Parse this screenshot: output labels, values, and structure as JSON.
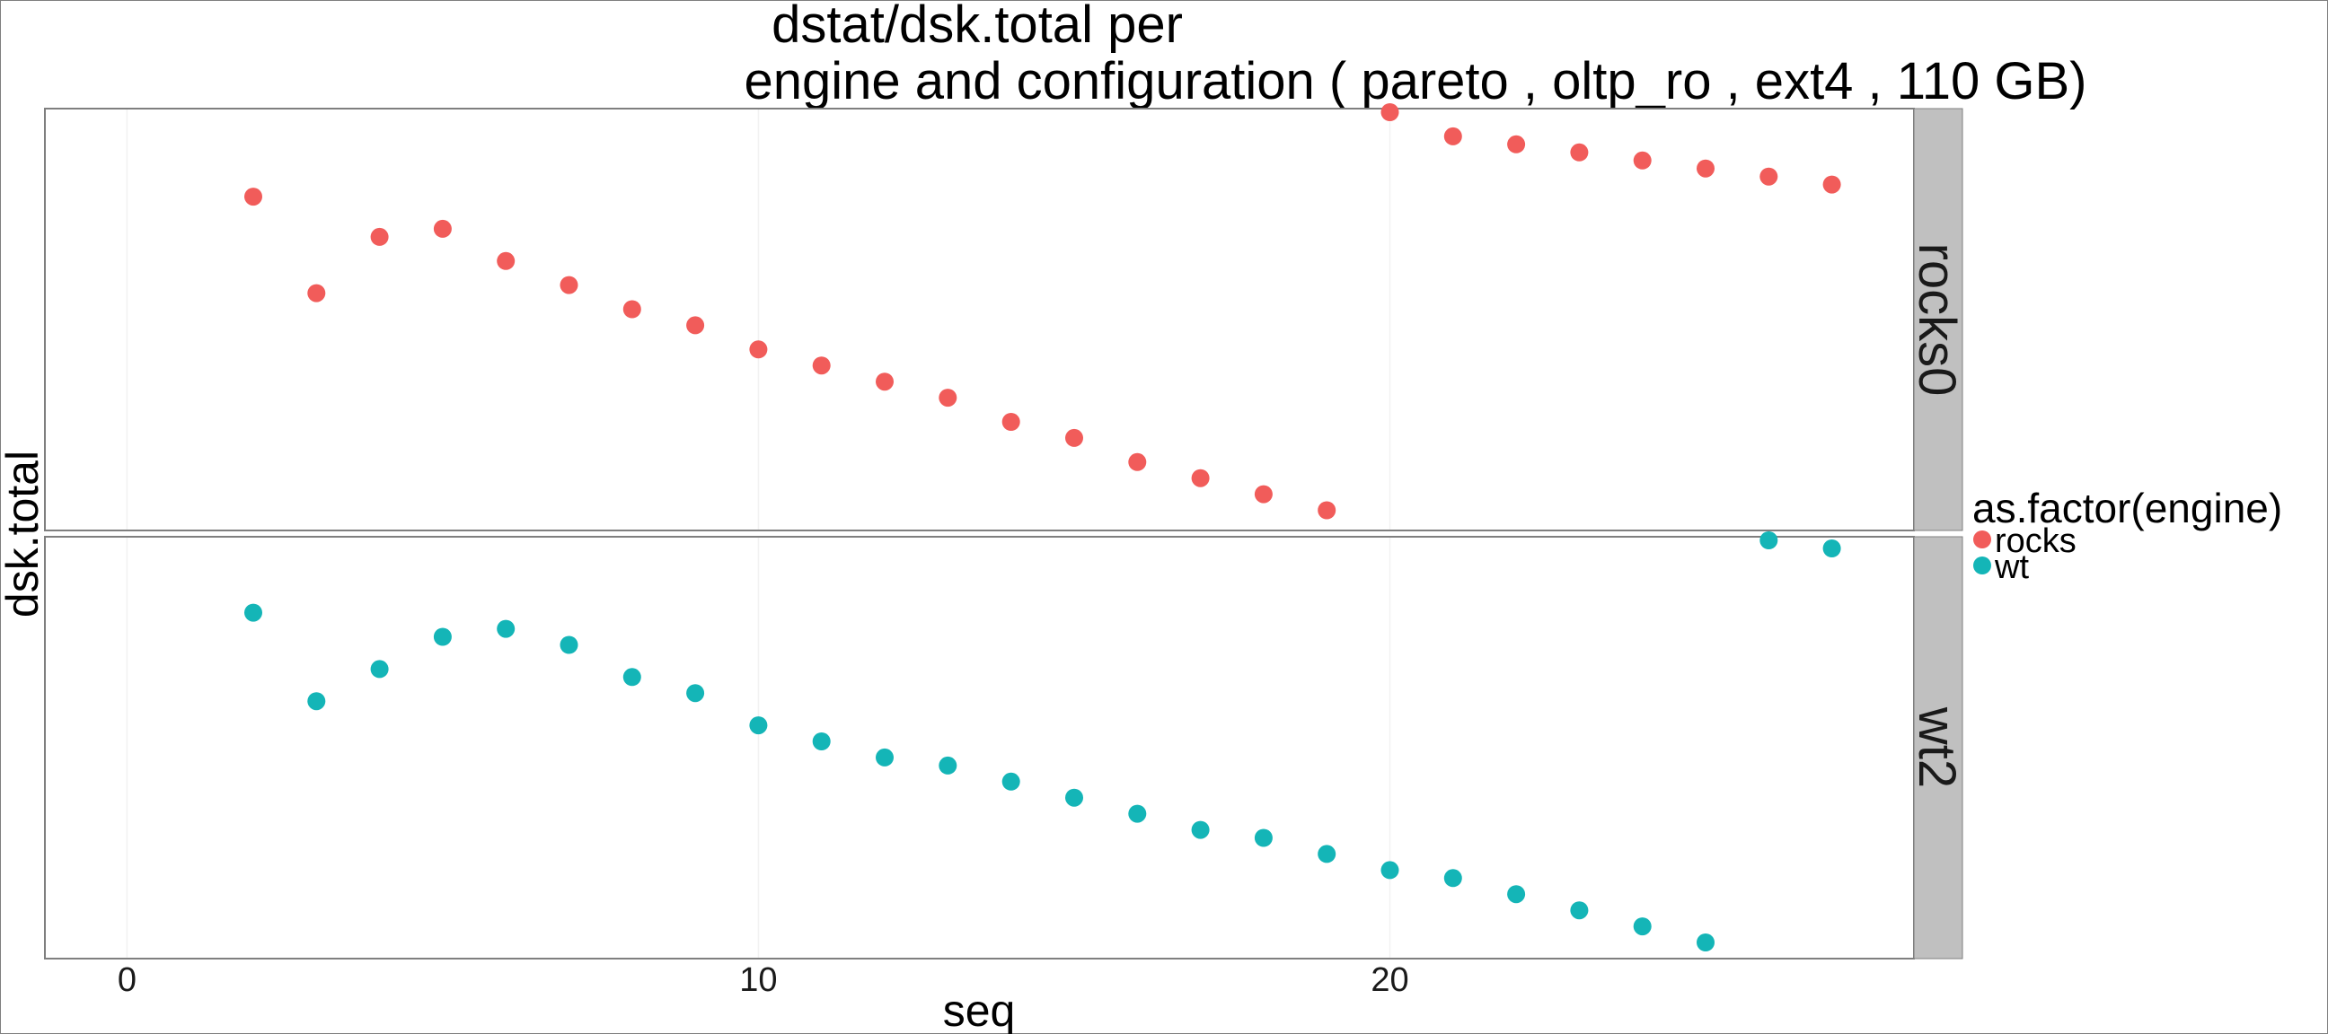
{
  "chart_data": {
    "type": "scatter",
    "title_line1": "dstat/dsk.total per",
    "title_line2": "engine and configuration ( pareto , oltp_ro , ext4 ,  110 GB)",
    "xlabel": "seq",
    "ylabel": "dsk.total",
    "xlim": [
      -1.3,
      28.3
    ],
    "x_ticks": [
      {
        "value": 0,
        "label": "0"
      },
      {
        "value": 10,
        "label": "10"
      },
      {
        "value": 20,
        "label": "20"
      }
    ],
    "grid": true,
    "legend": {
      "title": "as.factor(engine)",
      "placement": "right",
      "entries": [
        {
          "label": "rocks",
          "color": "#f15c5a"
        },
        {
          "label": "wt",
          "color": "#14b5b7"
        }
      ]
    },
    "panels": [
      {
        "strip_label": "rocks0",
        "series_label": "rocks",
        "color": "#f15c5a",
        "ylim": [
          0,
          100
        ],
        "points": [
          {
            "x": 2,
            "y": 79
          },
          {
            "x": 3,
            "y": 55
          },
          {
            "x": 4,
            "y": 69
          },
          {
            "x": 5,
            "y": 71
          },
          {
            "x": 6,
            "y": 63
          },
          {
            "x": 7,
            "y": 57
          },
          {
            "x": 8,
            "y": 51
          },
          {
            "x": 9,
            "y": 47
          },
          {
            "x": 10,
            "y": 41
          },
          {
            "x": 11,
            "y": 37
          },
          {
            "x": 12,
            "y": 33
          },
          {
            "x": 13,
            "y": 29
          },
          {
            "x": 14,
            "y": 23
          },
          {
            "x": 15,
            "y": 19
          },
          {
            "x": 16,
            "y": 13
          },
          {
            "x": 17,
            "y": 9
          },
          {
            "x": 18,
            "y": 5
          },
          {
            "x": 19,
            "y": 1
          },
          {
            "x": 20,
            "y": 100
          },
          {
            "x": 21,
            "y": 94
          },
          {
            "x": 22,
            "y": 92
          },
          {
            "x": 23,
            "y": 90
          },
          {
            "x": 24,
            "y": 88
          },
          {
            "x": 25,
            "y": 86
          },
          {
            "x": 26,
            "y": 84
          },
          {
            "x": 27,
            "y": 82
          }
        ]
      },
      {
        "strip_label": "wt2",
        "series_label": "wt",
        "color": "#14b5b7",
        "ylim": [
          0,
          100
        ],
        "points": [
          {
            "x": 2,
            "y": 82
          },
          {
            "x": 3,
            "y": 60
          },
          {
            "x": 4,
            "y": 68
          },
          {
            "x": 5,
            "y": 76
          },
          {
            "x": 6,
            "y": 78
          },
          {
            "x": 7,
            "y": 74
          },
          {
            "x": 8,
            "y": 66
          },
          {
            "x": 9,
            "y": 62
          },
          {
            "x": 10,
            "y": 54
          },
          {
            "x": 11,
            "y": 50
          },
          {
            "x": 12,
            "y": 46
          },
          {
            "x": 13,
            "y": 44
          },
          {
            "x": 14,
            "y": 40
          },
          {
            "x": 15,
            "y": 36
          },
          {
            "x": 16,
            "y": 32
          },
          {
            "x": 17,
            "y": 28
          },
          {
            "x": 18,
            "y": 26
          },
          {
            "x": 19,
            "y": 22
          },
          {
            "x": 20,
            "y": 18
          },
          {
            "x": 21,
            "y": 16
          },
          {
            "x": 22,
            "y": 12
          },
          {
            "x": 23,
            "y": 8
          },
          {
            "x": 24,
            "y": 4
          },
          {
            "x": 25,
            "y": 0
          },
          {
            "x": 26,
            "y": 100
          },
          {
            "x": 27,
            "y": 98
          }
        ]
      }
    ]
  }
}
